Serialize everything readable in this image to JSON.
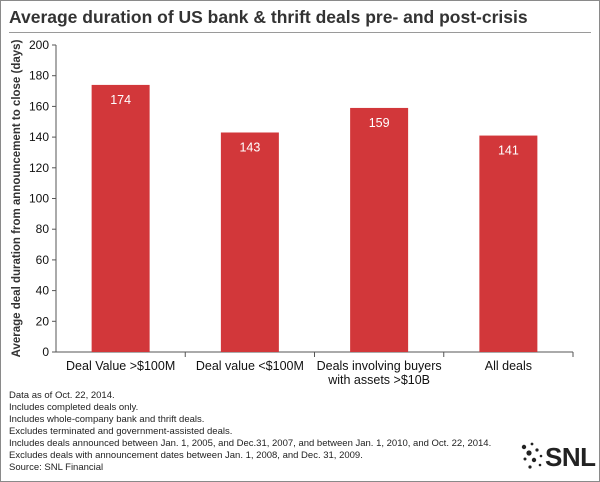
{
  "chart_data": {
    "type": "bar",
    "title": "Average duration of US bank & thrift deals pre- and post-crisis",
    "ylabel": "Average deal duration from announcement to close (days)",
    "xlabel": "",
    "categories": [
      [
        "Deal Value >$100M"
      ],
      [
        "Deal value <$100M"
      ],
      [
        "Deals involving buyers",
        "with assets >$10B"
      ],
      [
        "All deals"
      ]
    ],
    "values": [
      174,
      143,
      159,
      141
    ],
    "ylim": [
      0,
      200
    ],
    "yticks": [
      0,
      20,
      40,
      60,
      80,
      100,
      120,
      140,
      160,
      180,
      200
    ],
    "bar_color": "#d2373a",
    "grid": false,
    "legend": "none"
  },
  "notes": [
    "Data as of Oct. 22, 2014.",
    "Includes completed deals only.",
    "Includes whole-company bank and thrift deals.",
    "Excludes terminated and government-assisted deals.",
    "Includes deals announced between Jan. 1, 2005, and Dec.31, 2007, and between Jan. 1, 2010, and Oct. 22, 2014.",
    "Excludes deals with announcement dates between Jan. 1, 2008, and Dec. 31, 2009.",
    "Source: SNL Financial"
  ],
  "logo": {
    "text": "SNL",
    "icon": "snl-dots-logo-icon"
  }
}
